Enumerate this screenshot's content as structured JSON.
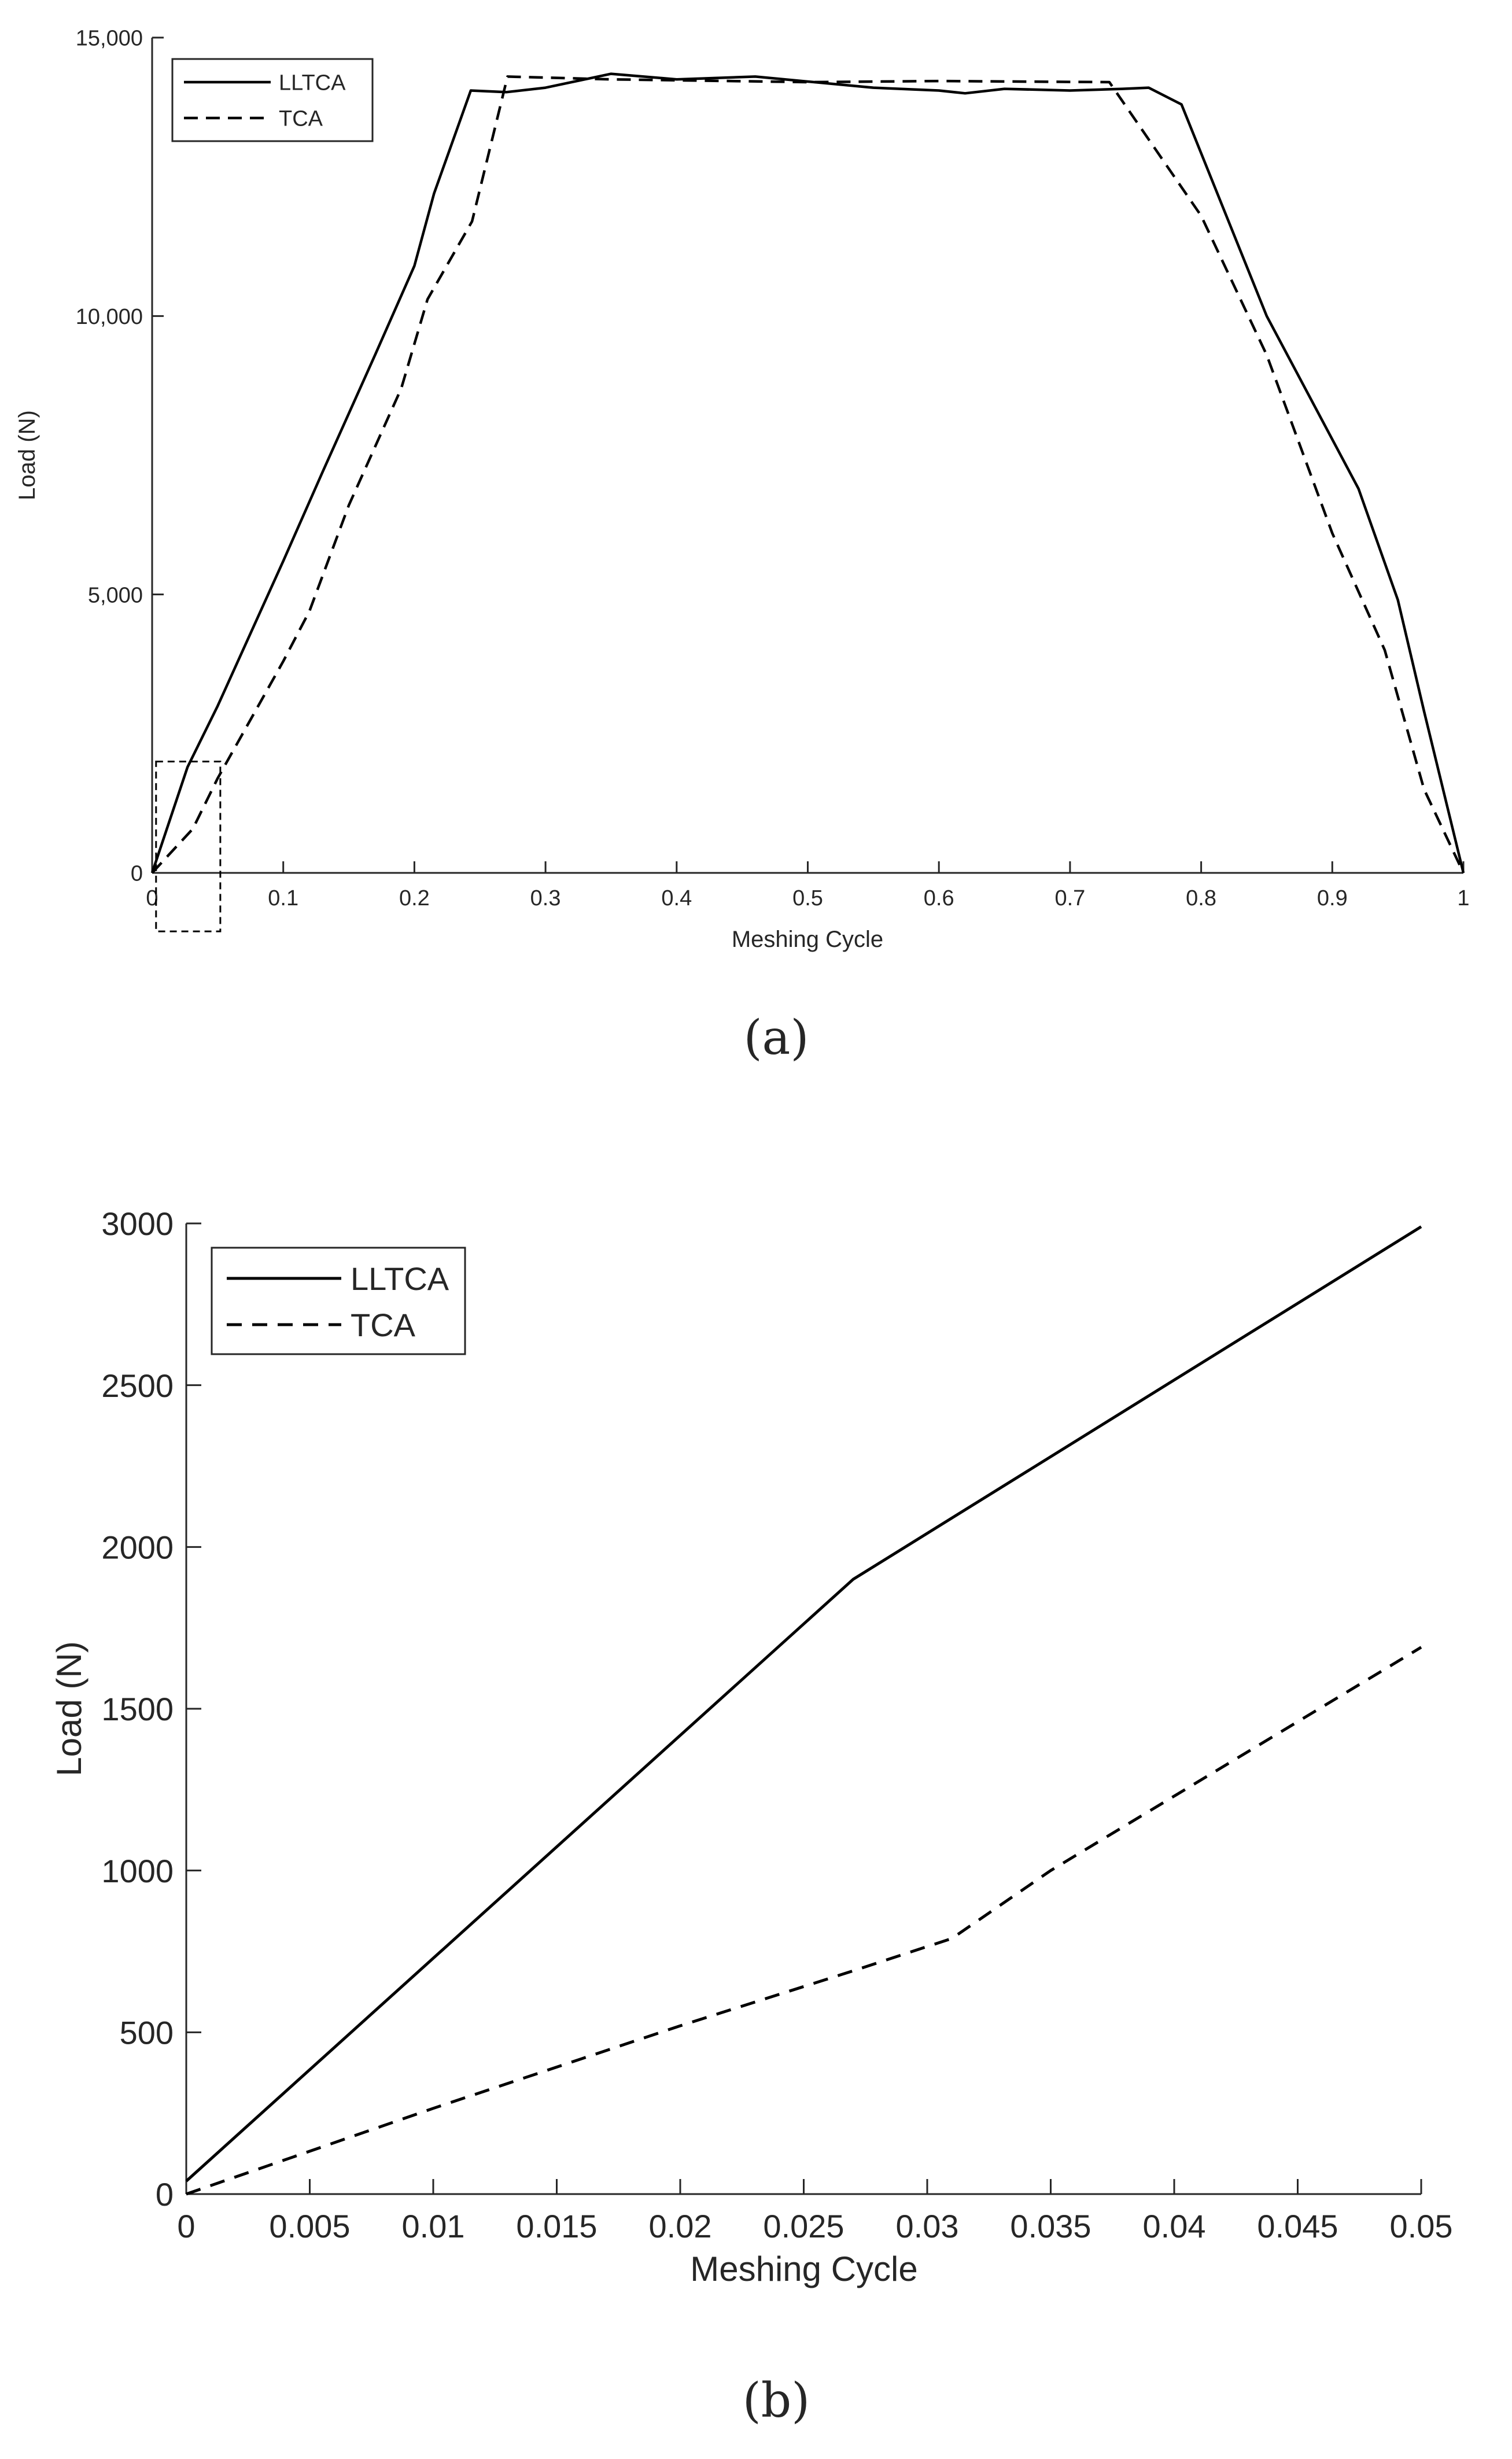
{
  "chart_data": [
    {
      "type": "line",
      "caption": "(a)",
      "xlabel": "Meshing Cycle",
      "ylabel": "Load (N)",
      "xlim": [
        0,
        1
      ],
      "ylim": [
        0,
        15000
      ],
      "xticks": [
        0,
        0.1,
        0.2,
        0.3,
        0.4,
        0.5,
        0.6,
        0.7,
        0.8,
        0.9,
        1
      ],
      "xtick_labels": [
        "0",
        "0.1",
        "0.2",
        "0.3",
        "0.4",
        "0.5",
        "0.6",
        "0.7",
        "0.8",
        "0.9",
        "1"
      ],
      "yticks": [
        0,
        5000,
        10000,
        15000
      ],
      "ytick_labels": [
        "0",
        "5,000",
        "10,000",
        "15,000"
      ],
      "grid": false,
      "legend_position": "top-left",
      "zoom_box": {
        "x": [
          0.003,
          0.052
        ],
        "y": [
          -1050,
          2000
        ]
      },
      "series": [
        {
          "name": "LLTCA",
          "style": "solid",
          "color": "#000000",
          "x": [
            0,
            0.027,
            0.05,
            0.1,
            0.13,
            0.17,
            0.2,
            0.215,
            0.243,
            0.27,
            0.3,
            0.35,
            0.4,
            0.46,
            0.55,
            0.6,
            0.62,
            0.65,
            0.7,
            0.74,
            0.76,
            0.785,
            0.85,
            0.92,
            0.95,
            0.97,
            1
          ],
          "y": [
            0,
            1900,
            3000,
            5600,
            7200,
            9300,
            10900,
            12200,
            14050,
            14020,
            14100,
            14350,
            14250,
            14300,
            14100,
            14050,
            14000,
            14080,
            14050,
            14080,
            14100,
            13800,
            10000,
            6900,
            4900,
            2900,
            0
          ]
        },
        {
          "name": "TCA",
          "style": "dashed",
          "color": "#000000",
          "x": [
            0,
            0.031,
            0.05,
            0.1,
            0.12,
            0.15,
            0.19,
            0.21,
            0.244,
            0.271,
            0.35,
            0.5,
            0.6,
            0.73,
            0.8,
            0.85,
            0.9,
            0.94,
            0.97,
            1
          ],
          "y": [
            0,
            790,
            1700,
            3800,
            4700,
            6600,
            8700,
            10300,
            11700,
            14300,
            14250,
            14200,
            14220,
            14200,
            11800,
            9300,
            6100,
            4000,
            1500,
            0
          ]
        }
      ]
    },
    {
      "type": "line",
      "caption": "(b)",
      "xlabel": "Meshing Cycle",
      "ylabel": "Load (N)",
      "xlim": [
        0,
        0.05
      ],
      "ylim": [
        0,
        3000
      ],
      "xticks": [
        0,
        0.005,
        0.01,
        0.015,
        0.02,
        0.025,
        0.03,
        0.035,
        0.04,
        0.045,
        0.05
      ],
      "xtick_labels": [
        "0",
        "0.005",
        "0.01",
        "0.015",
        "0.02",
        "0.025",
        "0.03",
        "0.035",
        "0.04",
        "0.045",
        "0.05"
      ],
      "yticks": [
        0,
        500,
        1000,
        1500,
        2000,
        2500,
        3000
      ],
      "ytick_labels": [
        "0",
        "500",
        "1000",
        "1500",
        "2000",
        "2500",
        "3000"
      ],
      "grid": false,
      "legend_position": "top-left",
      "series": [
        {
          "name": "LLTCA",
          "style": "solid",
          "color": "#000000",
          "x": [
            0,
            0.027,
            0.05
          ],
          "y": [
            40,
            1900,
            2990
          ]
        },
        {
          "name": "TCA",
          "style": "dashed",
          "color": "#000000",
          "x": [
            0,
            0.01,
            0.02,
            0.027,
            0.031,
            0.035,
            0.04,
            0.045,
            0.05
          ],
          "y": [
            0,
            265,
            520,
            690,
            790,
            1000,
            1230,
            1460,
            1690
          ]
        }
      ]
    }
  ]
}
